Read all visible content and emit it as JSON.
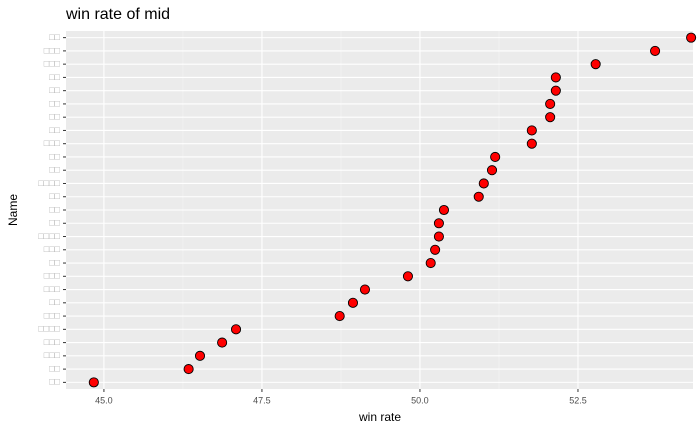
{
  "chart_data": {
    "type": "dot",
    "title": "win rate of mid",
    "x_label": "win rate",
    "y_label": "Name",
    "categories": [
      "□□",
      "□□□",
      "□□□",
      "□□",
      "□□",
      "□□",
      "□□",
      "□□",
      "□□□",
      "□□",
      "□□",
      "□□□□",
      "□□",
      "□□",
      "□□",
      "□□□□",
      "□□□",
      "□□",
      "□□□",
      "□□□",
      "□□",
      "□□□",
      "□□□□",
      "□□□",
      "□□□",
      "□□",
      "□□"
    ],
    "values": [
      54.29,
      53.72,
      52.78,
      52.15,
      52.15,
      52.06,
      52.06,
      51.77,
      51.77,
      51.19,
      51.14,
      51.01,
      50.93,
      50.38,
      50.3,
      50.3,
      50.24,
      50.17,
      49.81,
      49.13,
      48.94,
      48.73,
      47.09,
      46.87,
      46.52,
      46.34,
      44.84
    ],
    "color": "#ff0000",
    "xlim": [
      44.4,
      54.32
    ],
    "xticks": [
      {
        "value": 45,
        "label": "45.0"
      },
      47.5,
      {
        "value": 50,
        "label": "50.0"
      },
      52.5
    ],
    "grid": true
  }
}
